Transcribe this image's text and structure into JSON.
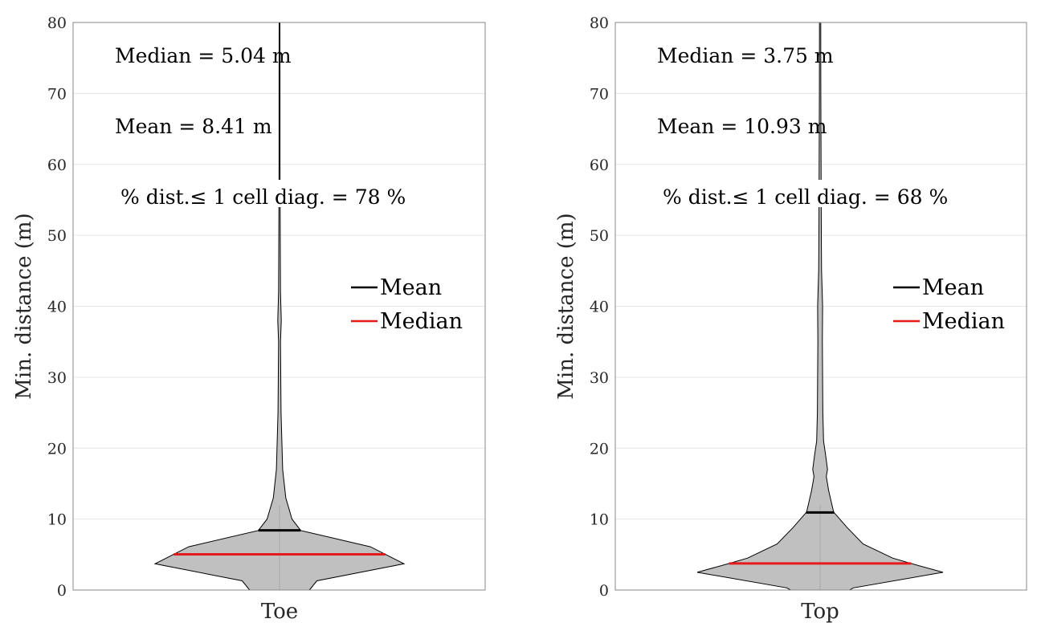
{
  "chart_data": [
    {
      "type": "violin",
      "panel": "left",
      "category": "Toe",
      "ylabel": "Min. distance (m)",
      "ylim": [
        0,
        80
      ],
      "yticks": [
        0,
        10,
        20,
        30,
        40,
        50,
        60,
        70,
        80
      ],
      "ytick_labels": [
        "0",
        "10",
        "20",
        "30",
        "40",
        "50",
        "60",
        "70",
        "80"
      ],
      "grid": true,
      "stats": {
        "median": 5.04,
        "mean": 8.41,
        "pct_within_1_cell_diag": 78
      },
      "annotations": [
        "Median = 5.04 m",
        "Mean = 8.41 m",
        "% dist.≤ 1 cell diag. = 78 %"
      ],
      "legend": {
        "placement": "right",
        "entries": [
          {
            "label": "Mean",
            "color": "#000000"
          },
          {
            "label": "Median",
            "color": "#e41a1c"
          }
        ]
      },
      "density_profile": [
        [
          0.0,
          0.24
        ],
        [
          1.3,
          0.3
        ],
        [
          3.7,
          1.0
        ],
        [
          6.1,
          0.73
        ],
        [
          8.4,
          0.17
        ],
        [
          10.0,
          0.1
        ],
        [
          13.0,
          0.05
        ],
        [
          17.0,
          0.025
        ],
        [
          25.0,
          0.012
        ],
        [
          35.0,
          0.008
        ],
        [
          38.0,
          0.014
        ],
        [
          42.0,
          0.008
        ],
        [
          50.0,
          0.006
        ],
        [
          60.0,
          0.004
        ],
        [
          70.0,
          0.004
        ],
        [
          80.0,
          0.003
        ]
      ],
      "fill_color": "#bdbdbd"
    },
    {
      "type": "violin",
      "panel": "right",
      "category": "Top",
      "ylabel": "Min. distance (m)",
      "ylim": [
        0,
        80
      ],
      "yticks": [
        0,
        10,
        20,
        30,
        40,
        50,
        60,
        70,
        80
      ],
      "ytick_labels": [
        "0",
        "10",
        "20",
        "30",
        "40",
        "50",
        "60",
        "70",
        "80"
      ],
      "grid": true,
      "stats": {
        "median": 3.75,
        "mean": 10.93,
        "pct_within_1_cell_diag": 68
      },
      "annotations": [
        "Median = 3.75 m",
        "Mean = 10.93 m",
        "% dist.≤ 1 cell diag. = 68 %"
      ],
      "legend": {
        "placement": "right",
        "entries": [
          {
            "label": "Mean",
            "color": "#000000"
          },
          {
            "label": "Median",
            "color": "#e41a1c"
          }
        ]
      },
      "density_profile": [
        [
          0.0,
          0.24
        ],
        [
          0.3,
          0.27
        ],
        [
          2.5,
          1.0
        ],
        [
          3.75,
          0.74
        ],
        [
          4.5,
          0.59
        ],
        [
          6.5,
          0.35
        ],
        [
          8.8,
          0.22
        ],
        [
          11.0,
          0.11
        ],
        [
          14.0,
          0.07
        ],
        [
          16.0,
          0.05
        ],
        [
          17.0,
          0.06
        ],
        [
          19.0,
          0.045
        ],
        [
          21.0,
          0.028
        ],
        [
          25.0,
          0.022
        ],
        [
          35.0,
          0.018
        ],
        [
          40.0,
          0.02
        ],
        [
          45.0,
          0.012
        ],
        [
          50.0,
          0.01
        ],
        [
          60.0,
          0.008
        ],
        [
          70.0,
          0.006
        ],
        [
          80.0,
          0.005
        ]
      ],
      "fill_color": "#bdbdbd"
    }
  ]
}
